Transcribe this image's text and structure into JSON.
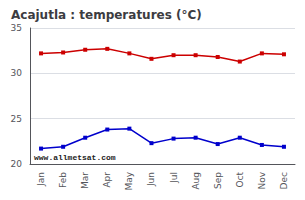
{
  "chart_data": {
    "type": "line",
    "title": "Acajutla : temperatures (°C)",
    "categories": [
      "Jan",
      "Feb",
      "Mar",
      "Apr",
      "May",
      "Jun",
      "Jul",
      "Aug",
      "Sep",
      "Oct",
      "Nov",
      "Dec"
    ],
    "series": [
      {
        "color": "#cc0000",
        "marker": "square",
        "values": [
          32.2,
          32.3,
          32.6,
          32.7,
          32.2,
          31.6,
          32.0,
          32.0,
          31.8,
          31.3,
          32.2,
          32.1
        ]
      },
      {
        "color": "#0000cc",
        "marker": "square",
        "values": [
          21.7,
          21.9,
          22.9,
          23.8,
          23.9,
          22.3,
          22.8,
          22.9,
          22.2,
          22.9,
          22.1,
          21.9
        ]
      }
    ],
    "ylim": [
      20,
      35
    ],
    "yticks": [
      20,
      25,
      30,
      35
    ],
    "grid": true,
    "annotation": "www.allmetsat.com"
  }
}
